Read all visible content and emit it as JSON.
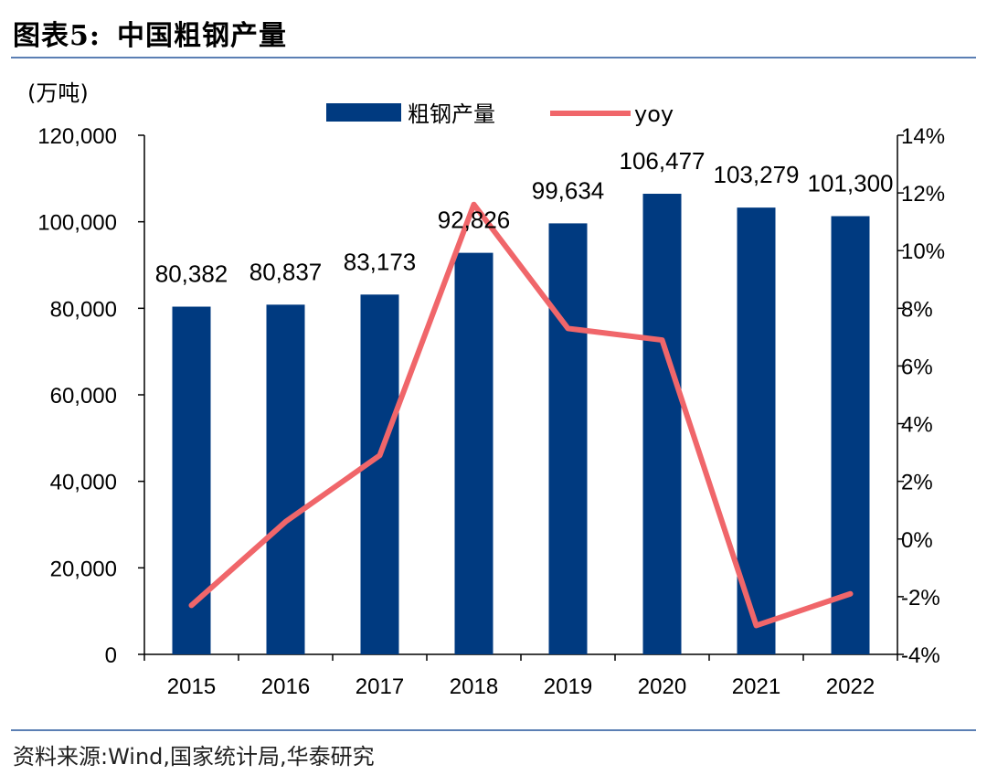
{
  "header": {
    "figure_label": "图表5:",
    "title": "中国粗钢产量",
    "unit": "(万吨)",
    "source": "资料来源:Wind,国家统计局,华泰研究"
  },
  "chart_data": {
    "type": "bar",
    "title": "中国粗钢产量",
    "categories": [
      "2015",
      "2016",
      "2017",
      "2018",
      "2019",
      "2020",
      "2021",
      "2022"
    ],
    "series": [
      {
        "name": "粗钢产量",
        "type": "bar",
        "axis": "left",
        "color": "#003a80",
        "values": [
          80382,
          80837,
          83173,
          92826,
          99634,
          106477,
          103279,
          101300
        ],
        "labels": [
          "80,382",
          "80,837",
          "83,173",
          "92,826",
          "99,634",
          "106,477",
          "103,279",
          "101,300"
        ]
      },
      {
        "name": "yoy",
        "type": "line",
        "axis": "right",
        "color": "#f0666a",
        "values": [
          -2.3,
          0.6,
          2.9,
          11.6,
          7.3,
          6.9,
          -3.0,
          -1.9
        ]
      }
    ],
    "y_left": {
      "range": [
        0,
        120000
      ],
      "ticks": [
        "0",
        "20,000",
        "40,000",
        "60,000",
        "80,000",
        "100,000",
        "120,000"
      ]
    },
    "y_right": {
      "range": [
        -4,
        14
      ],
      "ticks": [
        "-4%",
        "-2%",
        "0%",
        "2%",
        "4%",
        "6%",
        "8%",
        "10%",
        "12%",
        "14%"
      ]
    },
    "legend": {
      "placement": "top-center"
    },
    "grid": false
  }
}
